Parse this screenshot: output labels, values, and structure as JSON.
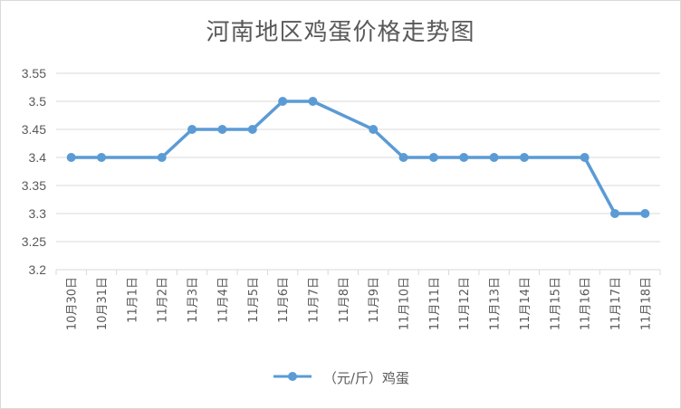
{
  "chart_data": {
    "type": "line",
    "title": "河南地区鸡蛋价格走势图",
    "xlabel": "",
    "ylabel": "",
    "ylim": [
      3.2,
      3.55
    ],
    "yticks": [
      "3.2",
      "3.25",
      "3.3",
      "3.35",
      "3.4",
      "3.45",
      "3.5",
      "3.55"
    ],
    "grid": true,
    "legend_position": "bottom",
    "categories": [
      "10月30日",
      "10月31日",
      "11月1日",
      "11月2日",
      "11月3日",
      "11月4日",
      "11月5日",
      "11月6日",
      "11月7日",
      "11月8日",
      "11月9日",
      "11月10日",
      "11月11日",
      "11月12日",
      "11月13日",
      "11月14日",
      "11月15日",
      "11月16日",
      "11月17日",
      "11月18日"
    ],
    "series": [
      {
        "name": "（元/斤）鸡蛋",
        "color": "#5b9bd5",
        "values": [
          3.4,
          3.4,
          null,
          3.4,
          3.45,
          3.45,
          3.45,
          3.5,
          3.5,
          null,
          3.45,
          3.4,
          3.4,
          3.4,
          3.4,
          3.4,
          null,
          3.4,
          3.3,
          3.3
        ]
      }
    ]
  }
}
